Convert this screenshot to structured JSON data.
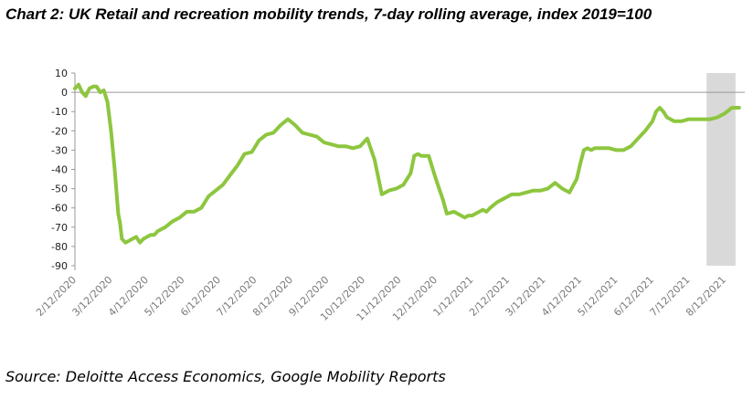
{
  "title": "Chart 2: UK Retail and recreation mobility trends, 7-day rolling average, index 2019=100",
  "source": "Source: Deloitte Access Economics, Google Mobility Reports",
  "chart_data": {
    "type": "line",
    "title": "Chart 2: UK Retail and recreation mobility trends, 7-day rolling average, index 2019=100",
    "xlabel": "",
    "ylabel": "",
    "ylim": [
      -90,
      10
    ],
    "yticks": [
      10,
      0,
      -10,
      -20,
      -30,
      -40,
      -50,
      -60,
      -70,
      -80,
      -90
    ],
    "xticks": [
      "2/12/2020",
      "3/12/2020",
      "4/12/2020",
      "5/12/2020",
      "6/12/2020",
      "7/12/2020",
      "8/12/2020",
      "9/12/2020",
      "10/12/2020",
      "11/12/2020",
      "12/12/2020",
      "1/12/2021",
      "2/12/2021",
      "3/12/2021",
      "4/12/2021",
      "5/12/2021",
      "6/12/2021",
      "7/12/2021",
      "8/12/2021"
    ],
    "shaded_region": {
      "from_month_index": 17.5,
      "to_month_index": 18.3,
      "color": "#d9d9d9"
    },
    "series": [
      {
        "name": "Retail and recreation",
        "color": "#8dc63f",
        "x": [
          0.0,
          0.1,
          0.2,
          0.3,
          0.4,
          0.5,
          0.6,
          0.7,
          0.8,
          0.9,
          1.0,
          1.1,
          1.2,
          1.25,
          1.3,
          1.4,
          1.5,
          1.6,
          1.7,
          1.8,
          1.9,
          2.0,
          2.1,
          2.2,
          2.3,
          2.5,
          2.7,
          2.9,
          3.1,
          3.3,
          3.5,
          3.7,
          3.9,
          4.1,
          4.3,
          4.5,
          4.7,
          4.9,
          5.1,
          5.3,
          5.5,
          5.7,
          5.9,
          6.1,
          6.3,
          6.5,
          6.7,
          6.9,
          7.1,
          7.3,
          7.5,
          7.7,
          7.9,
          8.1,
          8.3,
          8.5,
          8.7,
          8.9,
          9.1,
          9.2,
          9.3,
          9.4,
          9.5,
          9.6,
          9.8,
          10.0,
          10.2,
          10.3,
          10.5,
          10.7,
          10.8,
          10.9,
          11.0,
          11.1,
          11.2,
          11.3,
          11.4,
          11.5,
          11.7,
          11.9,
          12.1,
          12.3,
          12.5,
          12.7,
          12.9,
          13.1,
          13.3,
          13.5,
          13.7,
          13.9,
          14.0,
          14.1,
          14.2,
          14.3,
          14.4,
          14.5,
          14.6,
          14.8,
          15.0,
          15.2,
          15.4,
          15.6,
          15.8,
          16.0,
          16.1,
          16.2,
          16.3,
          16.4,
          16.5,
          16.6,
          16.8,
          17.0,
          17.2,
          17.4,
          17.6,
          17.8,
          18.0,
          18.2,
          18.4
        ],
        "values": [
          2,
          4,
          0,
          -2,
          2,
          3,
          3,
          0,
          1,
          -5,
          -20,
          -40,
          -63,
          -68,
          -76,
          -78,
          -77,
          -76,
          -75,
          -78,
          -76,
          -75,
          -74,
          -74,
          -72,
          -70,
          -67,
          -65,
          -62,
          -62,
          -60,
          -54,
          -51,
          -48,
          -43,
          -38,
          -32,
          -31,
          -25,
          -22,
          -21,
          -17,
          -14,
          -17,
          -21,
          -22,
          -23,
          -26,
          -27,
          -28,
          -28,
          -29,
          -28,
          -24,
          -35,
          -53,
          -51,
          -50,
          -48,
          -45,
          -42,
          -33,
          -32,
          -33,
          -33,
          -45,
          -56,
          -63,
          -62,
          -64,
          -65,
          -64,
          -64,
          -63,
          -62,
          -61,
          -62,
          -60,
          -57,
          -55,
          -53,
          -53,
          -52,
          -51,
          -51,
          -50,
          -47,
          -50,
          -52,
          -45,
          -37,
          -30,
          -29,
          -30,
          -29,
          -29,
          -29,
          -29,
          -30,
          -30,
          -28,
          -24,
          -20,
          -15,
          -10,
          -8,
          -10,
          -13,
          -14,
          -15,
          -15,
          -14,
          -14,
          -14,
          -14,
          -13,
          -11,
          -8,
          -8
        ]
      }
    ]
  }
}
